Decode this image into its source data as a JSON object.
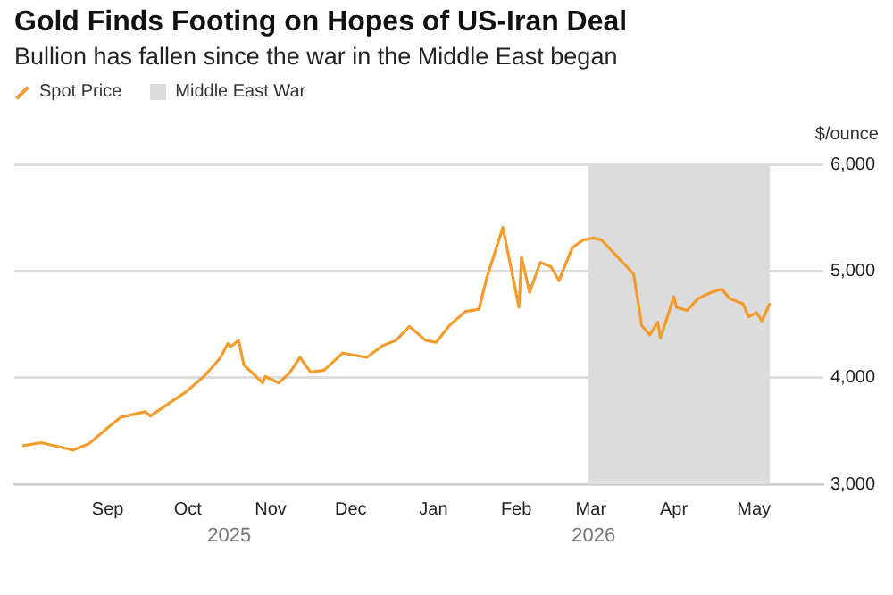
{
  "chart_data": {
    "type": "line",
    "title": "Gold Finds Footing on Hopes of US-Iran Deal",
    "subtitle": "Bullion has fallen since the war in the Middle East began",
    "ylabel": "$/ounce",
    "series": [
      {
        "name": "Spot Price",
        "color": "#f39c2b",
        "x": [
          "2025-07-31",
          "2025-08-07",
          "2025-08-19",
          "2025-08-25",
          "2025-09-01",
          "2025-09-06",
          "2025-09-15",
          "2025-09-17",
          "2025-09-24",
          "2025-09-30",
          "2025-10-07",
          "2025-10-13",
          "2025-10-16",
          "2025-10-17",
          "2025-10-20",
          "2025-10-22",
          "2025-10-29",
          "2025-10-30",
          "2025-11-04",
          "2025-11-08",
          "2025-11-12",
          "2025-11-16",
          "2025-11-21",
          "2025-11-28",
          "2025-12-07",
          "2025-12-13",
          "2025-12-18",
          "2025-12-23",
          "2025-12-29",
          "2026-01-02",
          "2026-01-07",
          "2026-01-13",
          "2026-01-18",
          "2026-01-21",
          "2026-01-27",
          "2026-01-31",
          "2026-02-02",
          "2026-02-03",
          "2026-02-06",
          "2026-02-10",
          "2026-02-14",
          "2026-02-17",
          "2026-02-22",
          "2026-02-26",
          "2026-03-02",
          "2026-03-05",
          "2026-03-17",
          "2026-03-20",
          "2026-03-23",
          "2026-03-26",
          "2026-03-27",
          "2026-03-29",
          "2026-04-01",
          "2026-04-02",
          "2026-04-06",
          "2026-04-10",
          "2026-04-15",
          "2026-04-19",
          "2026-04-22",
          "2026-04-27",
          "2026-04-29",
          "2026-05-02",
          "2026-05-04",
          "2026-05-07"
        ],
        "values": [
          3360,
          3390,
          3320,
          3380,
          3530,
          3630,
          3680,
          3640,
          3760,
          3860,
          4010,
          4180,
          4320,
          4290,
          4350,
          4120,
          3950,
          4010,
          3950,
          4040,
          4190,
          4050,
          4070,
          4230,
          4190,
          4300,
          4350,
          4480,
          4350,
          4330,
          4490,
          4620,
          4640,
          4940,
          5410,
          4910,
          4660,
          5130,
          4800,
          5080,
          5040,
          4910,
          5220,
          5290,
          5310,
          5290,
          4970,
          4490,
          4400,
          4520,
          4370,
          4520,
          4760,
          4660,
          4630,
          4740,
          4800,
          4830,
          4740,
          4690,
          4570,
          4610,
          4530,
          4700
        ]
      }
    ],
    "bands": [
      {
        "axis": "x",
        "from": "2026-02-28",
        "to": "2026-05-07",
        "label": "Middle East War",
        "color": "#dcdcdc"
      }
    ],
    "xlim": [
      "2025-07-28",
      "2026-05-27"
    ],
    "xticks": [
      {
        "value": "2025-09-01",
        "label": "Sep"
      },
      {
        "value": "2025-10-01",
        "label": "Oct"
      },
      {
        "value": "2025-11-01",
        "label": "Nov"
      },
      {
        "value": "2025-12-01",
        "label": "Dec"
      },
      {
        "value": "2026-01-01",
        "label": "Jan"
      },
      {
        "value": "2026-02-01",
        "label": "Feb"
      },
      {
        "value": "2026-03-01",
        "label": "Mar"
      },
      {
        "value": "2026-04-01",
        "label": "Apr"
      },
      {
        "value": "2026-05-01",
        "label": "May"
      }
    ],
    "ylim": [
      3000,
      6000
    ],
    "yticks": [
      {
        "value": 3000,
        "label": "3,000"
      },
      {
        "value": 4000,
        "label": "4,000"
      },
      {
        "value": 5000,
        "label": "5,000"
      },
      {
        "value": 6000,
        "label": "6,000"
      }
    ],
    "annotations": [
      "2025",
      "2026"
    ],
    "grid": "y",
    "legend": "top left",
    "marker": "none",
    "line_style": "solid"
  }
}
